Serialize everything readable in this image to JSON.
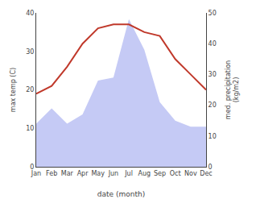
{
  "chart_data": {
    "type": "line",
    "categories": [
      "Jan",
      "Feb",
      "Mar",
      "Apr",
      "May",
      "Jun",
      "Jul",
      "Aug",
      "Sep",
      "Oct",
      "Nov",
      "Dec"
    ],
    "series": [
      {
        "type": "area",
        "axis": "y2",
        "color": "#c5caf5",
        "values": [
          14,
          19,
          14,
          17,
          28,
          29,
          48,
          38,
          21,
          15,
          13,
          13
        ]
      },
      {
        "type": "line",
        "color": "#c0392b",
        "values": [
          19,
          21,
          26,
          32,
          36,
          37,
          37,
          35,
          34,
          28,
          24,
          20
        ]
      }
    ],
    "xlabel": "date (month)",
    "ylabel": "max temp (C)",
    "y2label": "med. precipitation\n(kg/m2)",
    "ylim": [
      0,
      40
    ],
    "yticks": [
      0,
      10,
      20,
      30,
      40
    ],
    "y2lim": [
      0,
      50
    ],
    "y2ticks": [
      0,
      10,
      20,
      30,
      40,
      50
    ],
    "grid": false
  }
}
